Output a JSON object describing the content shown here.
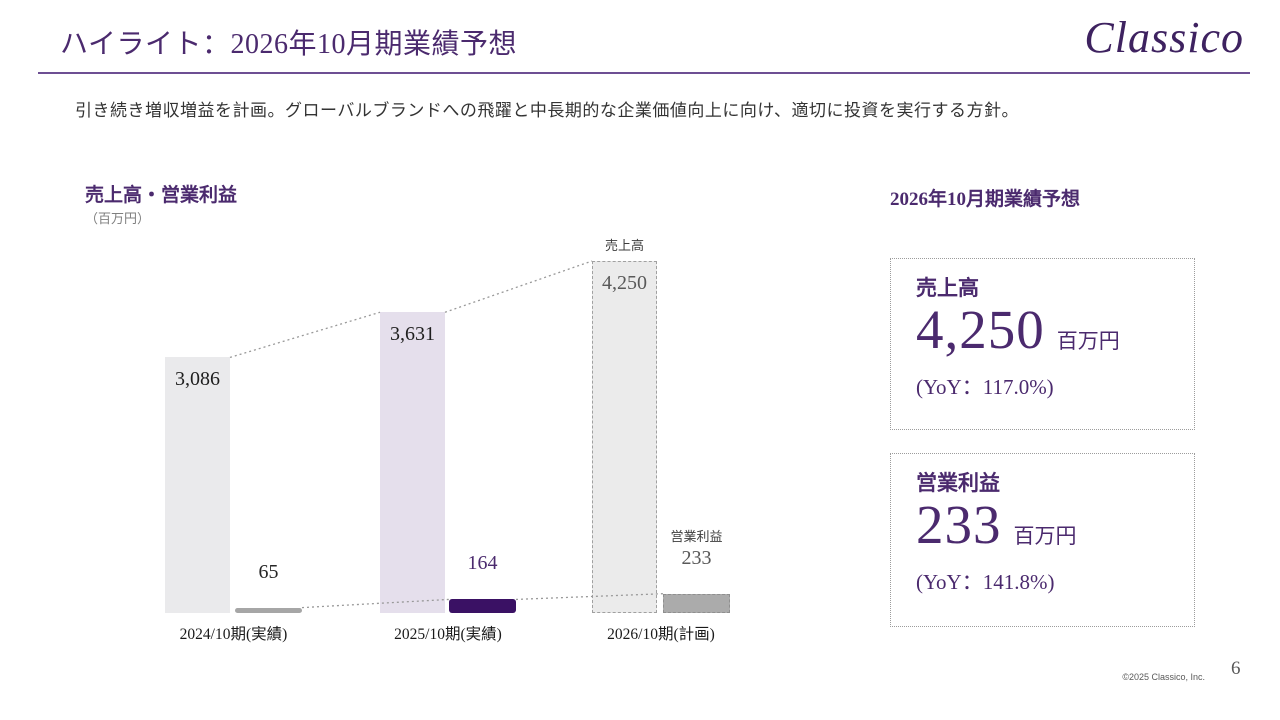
{
  "header": {
    "title": "ハイライト：2026年10月期業績予想",
    "logo": "Classico"
  },
  "subtitle": "引き続き増収増益を計画。グローバルブランドへの飛躍と中長期的な企業価値向上に向け、適切に投資を実行する方針。",
  "chart": {
    "heading": "売上高・営業利益",
    "unit_label": "（百万円）"
  },
  "chart_data": {
    "type": "bar",
    "title": "売上高・営業利益",
    "ylabel": "百万円",
    "ylim": [
      0,
      4250
    ],
    "grid": false,
    "legend_position": "none",
    "categories": [
      "2024/10期(実績)",
      "2025/10期(実績)",
      "2026/10期(計画)"
    ],
    "series": [
      {
        "name": "売上高",
        "values": [
          3086,
          3631,
          4250
        ]
      },
      {
        "name": "営業利益",
        "values": [
          65,
          164,
          233
        ]
      }
    ],
    "forecast_category_index": 2,
    "annotations": [
      {
        "text": "売上高",
        "target": "2026/10期(計画) 売上高バー上"
      },
      {
        "text": "営業利益",
        "target": "2026/10期(計画) 営業利益バー上"
      }
    ]
  },
  "forecast_panel": {
    "heading": "2026年10月期業績予想",
    "cards": [
      {
        "label": "売上高",
        "value": "4,250",
        "unit": "百万円",
        "yoy": "(YoY：117.0%)"
      },
      {
        "label": "営業利益",
        "value": "233",
        "unit": "百万円",
        "yoy": "(YoY：141.8%)"
      }
    ]
  },
  "footer": {
    "copyright": "©2025 Classico, Inc.",
    "page_number": "6"
  },
  "colors": {
    "accent_purple": "#4b2a6e",
    "logo_purple": "#3e2260",
    "rule_purple": "#6d4f93",
    "revenue_bar_actual": "#eaeaec",
    "revenue_bar_latest": "#e5dfec",
    "revenue_bar_forecast": "#ebebeb",
    "profit_bar_actual": "#a6a6a6",
    "profit_bar_latest": "#3a1164",
    "profit_bar_forecast": "#ababab",
    "forecast_dash_border": "#a0a0a0",
    "connector_gray": "#999999",
    "muted_value_gray": "#595959",
    "dark_value_text": "#1f1f1f"
  }
}
